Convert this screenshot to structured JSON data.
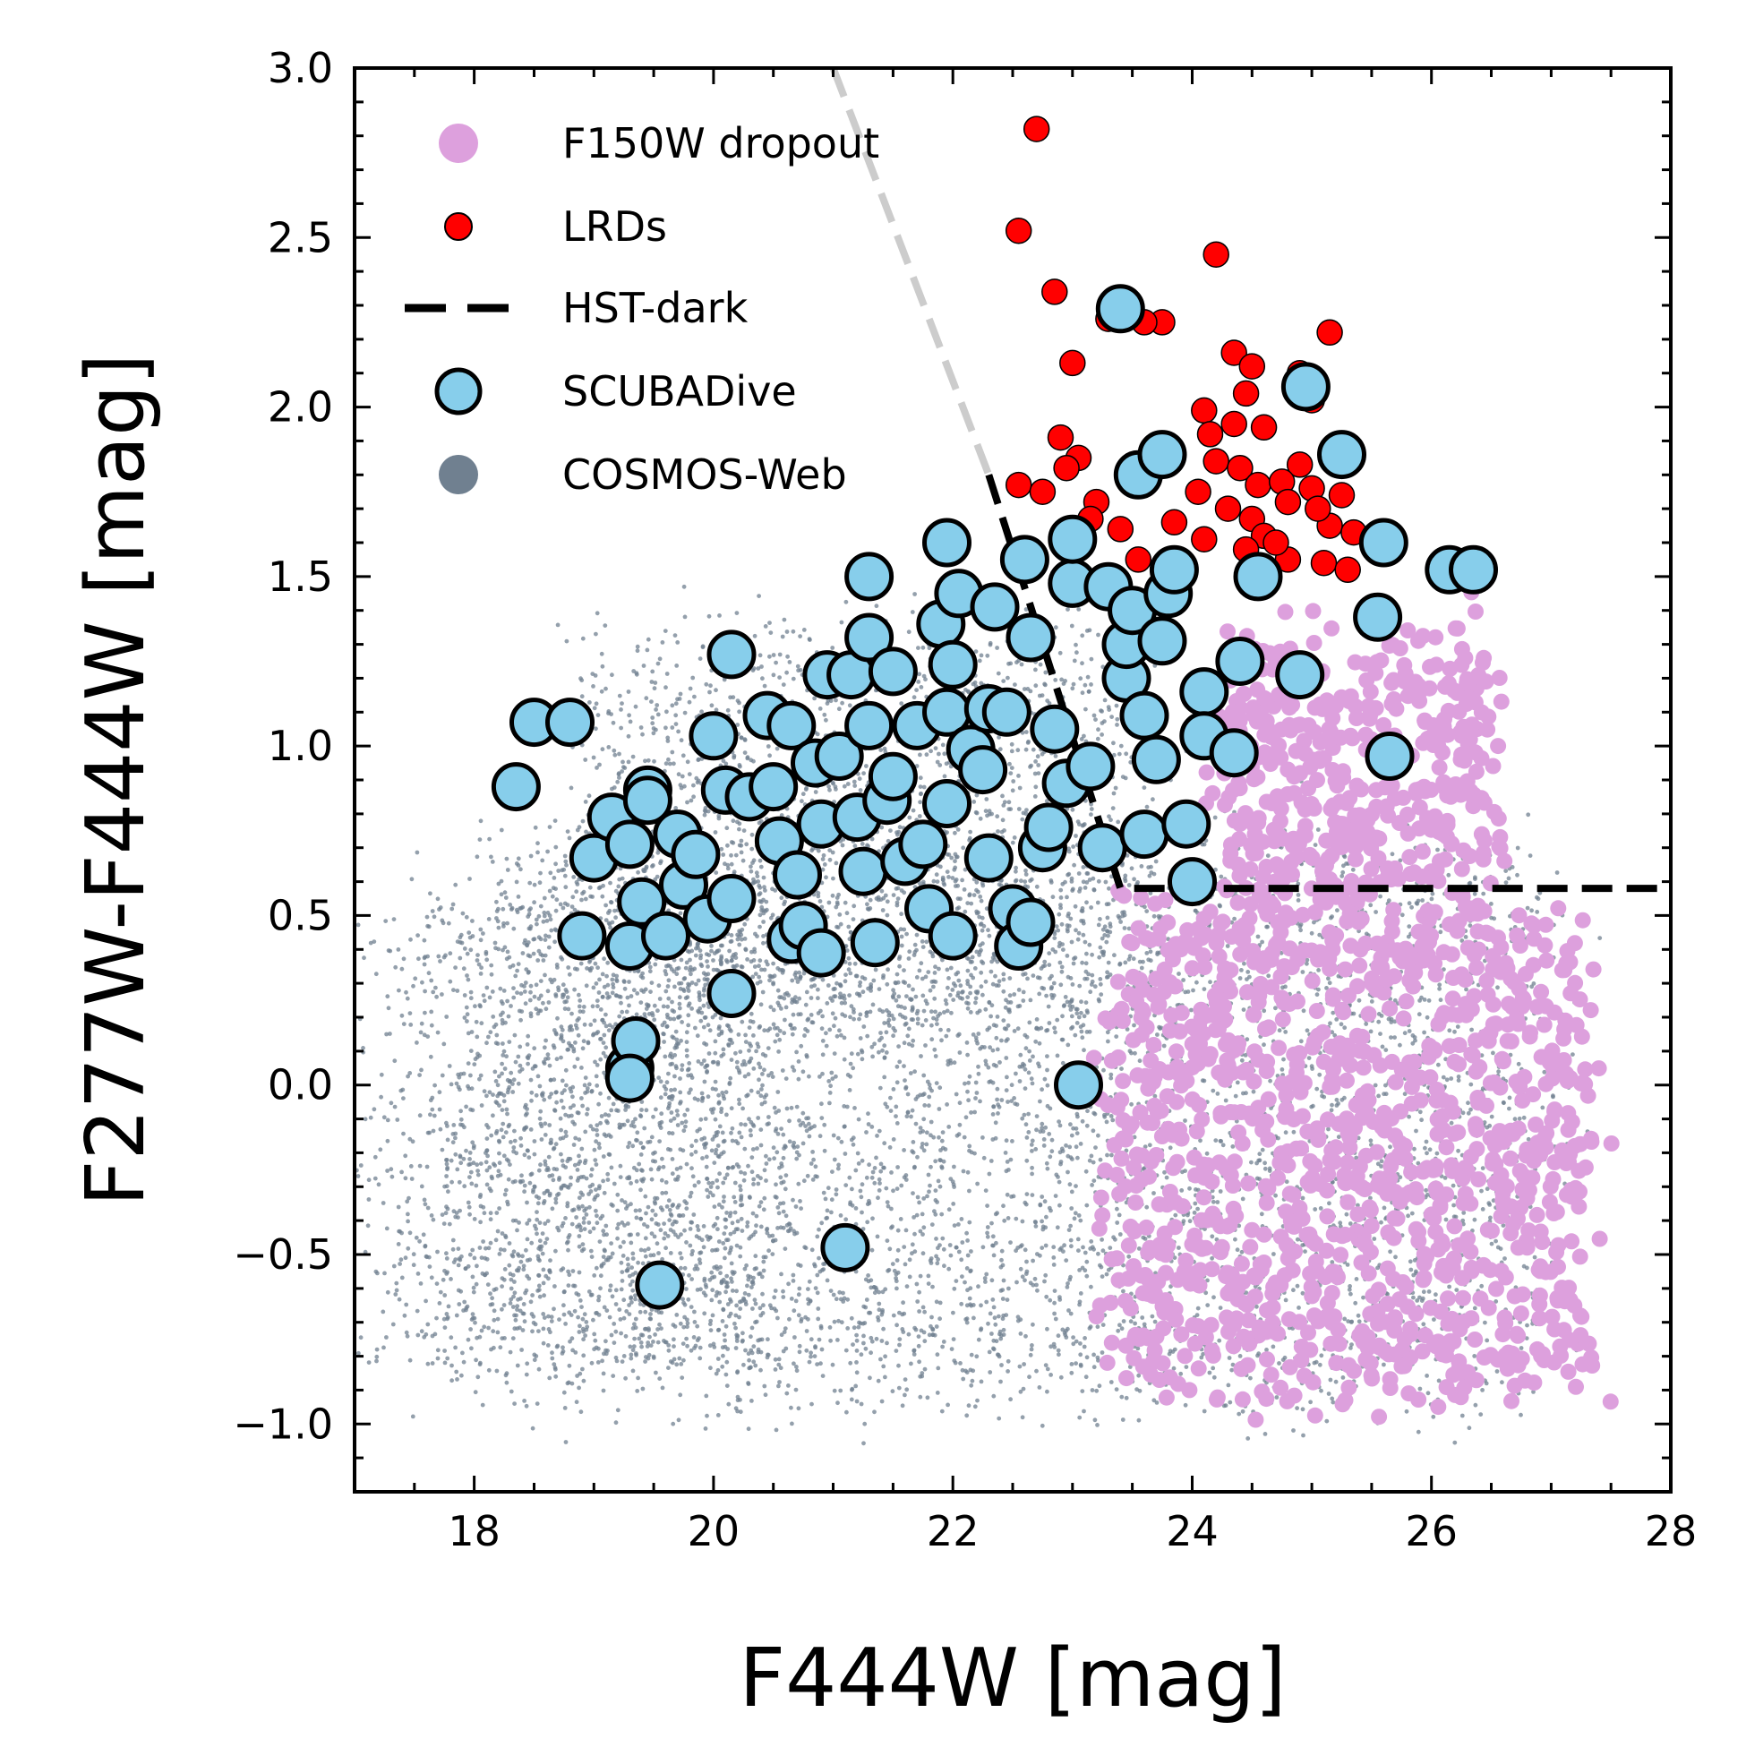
{
  "chart_data": {
    "type": "scatter",
    "xlabel": "F444W [mag]",
    "ylabel": "F277W-F444W [mag]",
    "xlim": [
      17,
      28
    ],
    "ylim": [
      -1.2,
      3.0
    ],
    "x_ticks": [
      18,
      20,
      22,
      24,
      26,
      28
    ],
    "x_tick_labels": [
      "18",
      "20",
      "22",
      "24",
      "26",
      "28"
    ],
    "y_ticks": [
      -1.0,
      -0.5,
      0.0,
      0.5,
      1.0,
      1.5,
      2.0,
      2.5,
      3.0
    ],
    "y_tick_labels": [
      "−1.0",
      "−0.5",
      "0.0",
      "0.5",
      "1.0",
      "1.5",
      "2.0",
      "2.5",
      "3.0"
    ],
    "x_minor_step": 0.5,
    "y_minor_step": 0.1,
    "grid": false,
    "legend_position": "top-left",
    "legend": [
      {
        "label": "F150W dropout",
        "marker": "dot",
        "color": "#dda0dd"
      },
      {
        "label": "LRDs",
        "marker": "dot-edged",
        "color": "#ff0000"
      },
      {
        "label": "HST-dark",
        "marker": "dashed-line",
        "color": "#000000"
      },
      {
        "label": "SCUBADive",
        "marker": "circle-edged",
        "color": "#87ceeb"
      },
      {
        "label": "COSMOS-Web",
        "marker": "dot",
        "color": "#708090"
      }
    ],
    "lines": [
      {
        "name": "HST-dark-extension",
        "style": "dashed",
        "color": "#cccccc",
        "x": [
          21.0,
          22.3
        ],
        "y": [
          3.0,
          1.8
        ]
      },
      {
        "name": "HST-dark-selection",
        "style": "dashed",
        "color": "#000000",
        "x": [
          22.3,
          23.4,
          28.0
        ],
        "y": [
          1.8,
          0.58,
          0.58
        ]
      }
    ],
    "series": [
      {
        "name": "COSMOS-Web",
        "color": "#708090",
        "description": "dense background field population, tens of thousands of sources",
        "density_regions": [
          {
            "x": [
              18.0,
              26.8
            ],
            "y": [
              -0.9,
              0.7
            ],
            "weight": 0.6
          },
          {
            "x": [
              19.0,
              23.5
            ],
            "y": [
              0.2,
              1.3
            ],
            "weight": 0.25
          },
          {
            "x": [
              17.2,
              20.5
            ],
            "y": [
              -0.8,
              0.5
            ],
            "weight": 0.15
          }
        ]
      },
      {
        "name": "F150W dropout",
        "color": "#dda0dd",
        "description": "faint red dropout sources",
        "density_regions": [
          {
            "x": [
              23.3,
              27.3
            ],
            "y": [
              -0.9,
              0.5
            ],
            "weight": 0.7
          },
          {
            "x": [
              24.2,
              26.5
            ],
            "y": [
              0.5,
              1.3
            ],
            "weight": 0.3
          }
        ]
      },
      {
        "name": "LRDs",
        "color": "#ff0000",
        "points": [
          [
            22.7,
            2.82
          ],
          [
            22.55,
            2.52
          ],
          [
            24.2,
            2.45
          ],
          [
            22.85,
            2.34
          ],
          [
            23.3,
            2.26
          ],
          [
            23.75,
            2.25
          ],
          [
            23.6,
            2.25
          ],
          [
            25.15,
            2.22
          ],
          [
            24.35,
            2.16
          ],
          [
            23.0,
            2.13
          ],
          [
            24.5,
            2.12
          ],
          [
            24.9,
            2.1
          ],
          [
            25.0,
            2.02
          ],
          [
            24.45,
            2.04
          ],
          [
            24.1,
            1.99
          ],
          [
            24.35,
            1.95
          ],
          [
            24.6,
            1.94
          ],
          [
            24.15,
            1.92
          ],
          [
            22.9,
            1.91
          ],
          [
            23.05,
            1.85
          ],
          [
            22.95,
            1.82
          ],
          [
            24.2,
            1.84
          ],
          [
            24.9,
            1.83
          ],
          [
            24.4,
            1.82
          ],
          [
            22.55,
            1.77
          ],
          [
            22.75,
            1.75
          ],
          [
            23.2,
            1.72
          ],
          [
            24.05,
            1.75
          ],
          [
            24.55,
            1.77
          ],
          [
            24.75,
            1.78
          ],
          [
            25.0,
            1.76
          ],
          [
            25.25,
            1.74
          ],
          [
            24.3,
            1.7
          ],
          [
            24.5,
            1.67
          ],
          [
            24.8,
            1.72
          ],
          [
            24.6,
            1.62
          ],
          [
            25.15,
            1.65
          ],
          [
            25.35,
            1.63
          ],
          [
            23.4,
            1.64
          ],
          [
            23.15,
            1.67
          ],
          [
            23.85,
            1.66
          ],
          [
            24.1,
            1.61
          ],
          [
            24.45,
            1.58
          ],
          [
            24.8,
            1.55
          ],
          [
            25.1,
            1.54
          ],
          [
            25.3,
            1.52
          ],
          [
            23.55,
            1.55
          ],
          [
            22.95,
            1.63
          ],
          [
            24.7,
            1.6
          ],
          [
            25.05,
            1.7
          ]
        ]
      },
      {
        "name": "SCUBADive",
        "color": "#87ceeb",
        "points": [
          [
            18.35,
            0.88
          ],
          [
            18.5,
            1.07
          ],
          [
            18.8,
            1.07
          ],
          [
            19.0,
            0.67
          ],
          [
            19.15,
            0.79
          ],
          [
            19.3,
            0.71
          ],
          [
            18.9,
            0.44
          ],
          [
            19.3,
            0.41
          ],
          [
            19.3,
            0.05
          ],
          [
            19.35,
            0.13
          ],
          [
            19.3,
            0.02
          ],
          [
            19.55,
            -0.59
          ],
          [
            19.45,
            0.87
          ],
          [
            19.45,
            0.84
          ],
          [
            19.4,
            0.54
          ],
          [
            19.6,
            0.44
          ],
          [
            19.7,
            0.74
          ],
          [
            19.75,
            0.59
          ],
          [
            19.85,
            0.68
          ],
          [
            19.95,
            0.49
          ],
          [
            20.0,
            1.03
          ],
          [
            20.1,
            0.87
          ],
          [
            20.15,
            0.55
          ],
          [
            20.15,
            0.27
          ],
          [
            20.15,
            1.27
          ],
          [
            20.3,
            0.85
          ],
          [
            20.45,
            1.09
          ],
          [
            20.5,
            0.88
          ],
          [
            20.55,
            0.72
          ],
          [
            20.65,
            1.06
          ],
          [
            20.65,
            0.43
          ],
          [
            20.7,
            0.62
          ],
          [
            20.75,
            0.47
          ],
          [
            20.85,
            0.95
          ],
          [
            20.9,
            0.77
          ],
          [
            20.9,
            0.39
          ],
          [
            20.95,
            1.21
          ],
          [
            21.05,
            0.97
          ],
          [
            21.1,
            -0.48
          ],
          [
            21.15,
            1.21
          ],
          [
            21.2,
            0.79
          ],
          [
            21.25,
            0.63
          ],
          [
            21.3,
            1.06
          ],
          [
            21.3,
            1.32
          ],
          [
            21.3,
            1.5
          ],
          [
            21.35,
            0.42
          ],
          [
            21.45,
            0.84
          ],
          [
            21.5,
            0.91
          ],
          [
            21.5,
            1.22
          ],
          [
            21.6,
            0.66
          ],
          [
            21.7,
            1.06
          ],
          [
            21.75,
            0.71
          ],
          [
            21.8,
            0.52
          ],
          [
            21.9,
            1.36
          ],
          [
            21.95,
            1.1
          ],
          [
            21.95,
            0.83
          ],
          [
            21.95,
            1.6
          ],
          [
            22.0,
            0.44
          ],
          [
            22.0,
            1.24
          ],
          [
            22.05,
            1.45
          ],
          [
            22.15,
            0.99
          ],
          [
            22.25,
            0.93
          ],
          [
            22.3,
            0.67
          ],
          [
            22.3,
            1.11
          ],
          [
            22.35,
            1.41
          ],
          [
            22.45,
            1.1
          ],
          [
            22.5,
            0.52
          ],
          [
            22.55,
            0.41
          ],
          [
            22.6,
            1.55
          ],
          [
            22.65,
            1.32
          ],
          [
            22.65,
            0.48
          ],
          [
            22.75,
            0.7
          ],
          [
            22.8,
            0.76
          ],
          [
            22.85,
            1.05
          ],
          [
            22.95,
            0.89
          ],
          [
            23.0,
            1.48
          ],
          [
            23.0,
            1.61
          ],
          [
            23.05,
            0.0
          ],
          [
            23.15,
            0.94
          ],
          [
            23.25,
            0.7
          ],
          [
            23.3,
            1.47
          ],
          [
            23.4,
            2.29
          ],
          [
            23.45,
            1.2
          ],
          [
            23.45,
            1.3
          ],
          [
            23.5,
            1.4
          ],
          [
            23.55,
            1.8
          ],
          [
            23.6,
            0.74
          ],
          [
            23.6,
            1.09
          ],
          [
            23.7,
            0.96
          ],
          [
            23.75,
            1.31
          ],
          [
            23.75,
            1.86
          ],
          [
            23.8,
            1.45
          ],
          [
            23.85,
            1.52
          ],
          [
            23.95,
            0.77
          ],
          [
            24.0,
            0.6
          ],
          [
            24.1,
            1.16
          ],
          [
            24.1,
            1.03
          ],
          [
            24.35,
            0.98
          ],
          [
            24.4,
            1.25
          ],
          [
            24.55,
            1.5
          ],
          [
            24.9,
            1.21
          ],
          [
            24.95,
            2.06
          ],
          [
            25.25,
            1.86
          ],
          [
            25.55,
            1.38
          ],
          [
            25.6,
            1.6
          ],
          [
            25.65,
            0.97
          ],
          [
            26.15,
            1.52
          ],
          [
            26.35,
            1.52
          ]
        ]
      }
    ]
  }
}
